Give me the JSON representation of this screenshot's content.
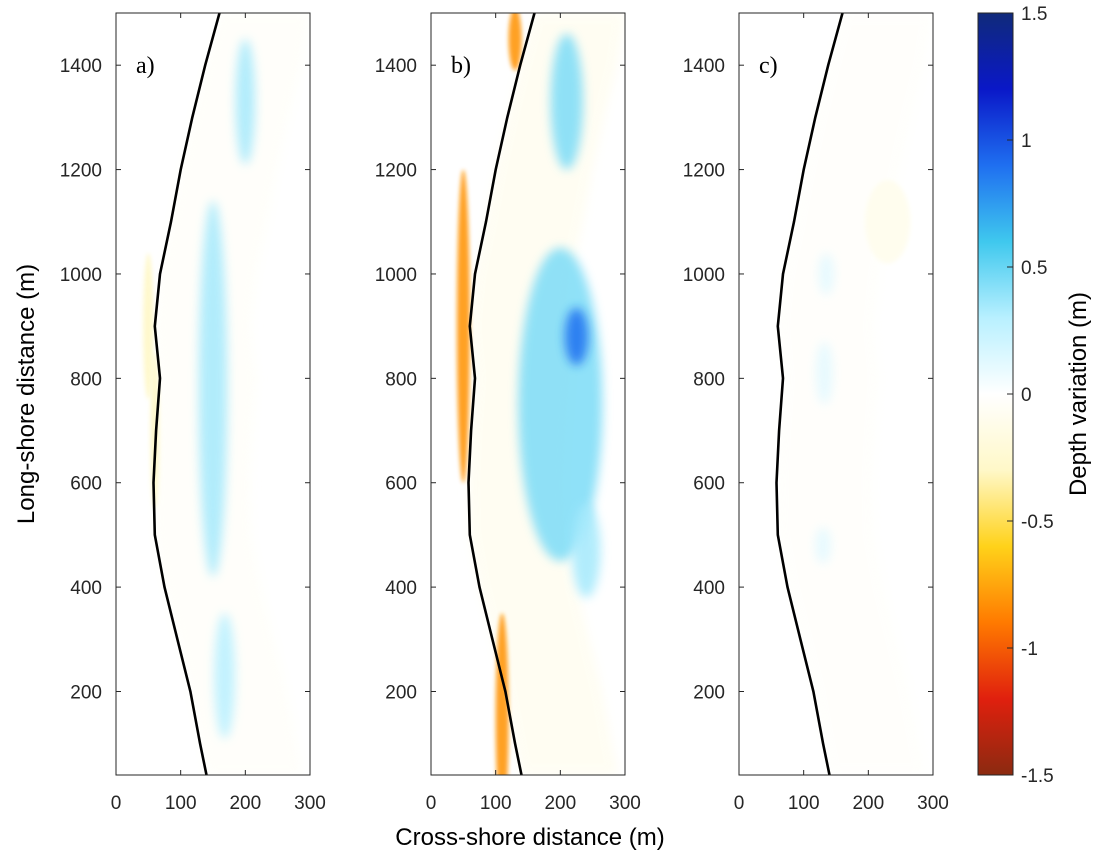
{
  "chart_data": {
    "type": "heatmap",
    "xlabel": "Cross-shore distance (m)",
    "ylabel": "Long-shore distance (m)",
    "xlim": [
      0,
      300
    ],
    "ylim": [
      40,
      1500
    ],
    "xticks": [
      0,
      100,
      200,
      300
    ],
    "yticks": [
      200,
      400,
      600,
      800,
      1000,
      1200,
      1400
    ],
    "grid": false,
    "colorbar": {
      "label": "Depth variation (m)",
      "range": [
        -1.5,
        1.5
      ],
      "ticks": [
        -1.5,
        -1,
        -0.5,
        0,
        0.5,
        1,
        1.5
      ],
      "colormap": "brown-red-orange-yellow-white-cyan-blue-navy",
      "colors": [
        "#8b2a10",
        "#e0200e",
        "#ff7a00",
        "#ffd21a",
        "#fff8c8",
        "#ffffff",
        "#b8f0ff",
        "#3fc8ee",
        "#1f6ff0",
        "#0a18c8",
        "#102a7a"
      ]
    },
    "shoreline_color": "#000000",
    "panels": [
      {
        "label": "a)",
        "shoreline": [
          [
            140,
            40
          ],
          [
            130,
            100
          ],
          [
            115,
            200
          ],
          [
            95,
            300
          ],
          [
            75,
            400
          ],
          [
            60,
            500
          ],
          [
            58,
            600
          ],
          [
            62,
            700
          ],
          [
            68,
            800
          ],
          [
            60,
            900
          ],
          [
            68,
            1000
          ],
          [
            85,
            1100
          ],
          [
            100,
            1200
          ],
          [
            118,
            1300
          ],
          [
            138,
            1400
          ],
          [
            160,
            1500
          ]
        ],
        "features": [
          {
            "kind": "bar",
            "value": 0.35,
            "x": 150,
            "y": 780,
            "rx": 22,
            "ry": 360
          },
          {
            "kind": "bar",
            "value": 0.35,
            "x": 200,
            "y": 1330,
            "rx": 15,
            "ry": 120
          },
          {
            "kind": "bar",
            "value": 0.3,
            "x": 168,
            "y": 230,
            "rx": 16,
            "ry": 120
          },
          {
            "kind": "trough",
            "value": -0.3,
            "x": 50,
            "y": 900,
            "rx": 8,
            "ry": 140
          },
          {
            "kind": "trough",
            "value": -0.3,
            "x": 60,
            "y": 700,
            "rx": 7,
            "ry": 150
          }
        ]
      },
      {
        "label": "b)",
        "shoreline": [
          [
            140,
            40
          ],
          [
            130,
            100
          ],
          [
            115,
            200
          ],
          [
            95,
            300
          ],
          [
            75,
            400
          ],
          [
            60,
            500
          ],
          [
            58,
            600
          ],
          [
            62,
            700
          ],
          [
            68,
            800
          ],
          [
            60,
            900
          ],
          [
            68,
            1000
          ],
          [
            85,
            1100
          ],
          [
            100,
            1200
          ],
          [
            118,
            1300
          ],
          [
            138,
            1400
          ],
          [
            160,
            1500
          ]
        ],
        "features": [
          {
            "kind": "bar",
            "value": 0.45,
            "x": 200,
            "y": 750,
            "rx": 65,
            "ry": 300
          },
          {
            "kind": "bar",
            "value": 0.9,
            "x": 225,
            "y": 880,
            "rx": 18,
            "ry": 55
          },
          {
            "kind": "bar",
            "value": 0.45,
            "x": 210,
            "y": 1330,
            "rx": 25,
            "ry": 130
          },
          {
            "kind": "bar",
            "value": 0.35,
            "x": 240,
            "y": 470,
            "rx": 22,
            "ry": 90
          },
          {
            "kind": "trough",
            "value": -0.8,
            "x": 50,
            "y": 900,
            "rx": 10,
            "ry": 300
          },
          {
            "kind": "trough",
            "value": -0.8,
            "x": 110,
            "y": 150,
            "rx": 10,
            "ry": 200
          },
          {
            "kind": "trough",
            "value": -0.8,
            "x": 130,
            "y": 1450,
            "rx": 10,
            "ry": 60
          }
        ]
      },
      {
        "label": "c)",
        "shoreline": [
          [
            140,
            40
          ],
          [
            130,
            100
          ],
          [
            115,
            200
          ],
          [
            95,
            300
          ],
          [
            75,
            400
          ],
          [
            60,
            500
          ],
          [
            58,
            600
          ],
          [
            62,
            700
          ],
          [
            68,
            800
          ],
          [
            60,
            900
          ],
          [
            68,
            1000
          ],
          [
            85,
            1100
          ],
          [
            100,
            1200
          ],
          [
            118,
            1300
          ],
          [
            138,
            1400
          ],
          [
            160,
            1500
          ]
        ],
        "features": [
          {
            "kind": "bar",
            "value": 0.12,
            "x": 135,
            "y": 1000,
            "rx": 12,
            "ry": 40
          },
          {
            "kind": "bar",
            "value": 0.12,
            "x": 132,
            "y": 810,
            "rx": 13,
            "ry": 60
          },
          {
            "kind": "bar",
            "value": 0.12,
            "x": 130,
            "y": 480,
            "rx": 12,
            "ry": 35
          },
          {
            "kind": "trough",
            "value": -0.1,
            "x": 230,
            "y": 1100,
            "rx": 35,
            "ry": 80
          }
        ]
      }
    ]
  }
}
